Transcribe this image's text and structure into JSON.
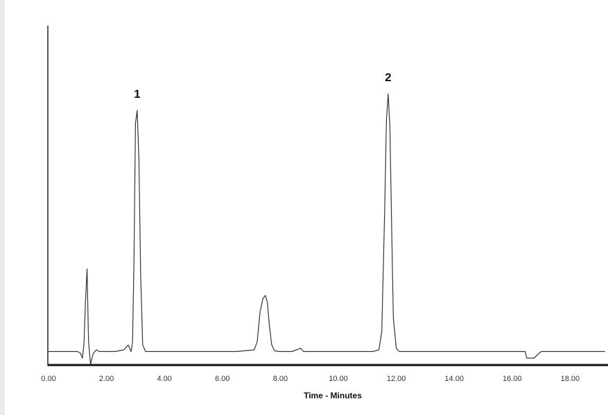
{
  "chart_data": {
    "type": "line",
    "title": "",
    "xlabel": "Time - Minutes",
    "ylabel": "",
    "xlim": [
      0.0,
      19.2
    ],
    "ylim": [
      -0.05,
      1.0
    ],
    "x_tick_labels": [
      "0.00",
      "2.00",
      "4.00",
      "6.00",
      "8.00",
      "10.00",
      "12.00",
      "14.00",
      "16.00",
      "18.00"
    ],
    "grid": false,
    "series": [
      {
        "x": [
          0.0,
          0.4,
          0.8,
          1.0,
          1.1,
          1.17,
          1.22,
          1.28,
          1.33,
          1.38,
          1.45,
          1.5,
          1.55,
          1.65,
          1.75,
          1.95,
          2.3,
          2.6,
          2.75,
          2.85,
          2.9,
          2.95,
          3.0,
          3.06,
          3.12,
          3.18,
          3.25,
          3.35,
          3.6,
          5.0,
          6.5,
          7.1,
          7.2,
          7.3,
          7.4,
          7.48,
          7.55,
          7.62,
          7.7,
          7.8,
          7.95,
          8.4,
          8.6,
          8.7,
          8.8,
          9.0,
          10.5,
          11.2,
          11.4,
          11.5,
          11.6,
          11.66,
          11.72,
          11.78,
          11.84,
          11.9,
          12.0,
          12.1,
          12.4,
          14.0,
          16.0,
          16.45,
          16.5,
          16.55,
          16.75,
          17.0,
          19.2
        ],
        "y": [
          0.02,
          0.02,
          0.02,
          0.02,
          0.015,
          0.0,
          0.04,
          0.18,
          0.27,
          0.05,
          -0.02,
          0.0,
          0.015,
          0.025,
          0.02,
          0.02,
          0.02,
          0.025,
          0.04,
          0.02,
          0.05,
          0.3,
          0.71,
          0.75,
          0.6,
          0.25,
          0.04,
          0.02,
          0.02,
          0.02,
          0.02,
          0.025,
          0.05,
          0.14,
          0.18,
          0.19,
          0.17,
          0.1,
          0.04,
          0.022,
          0.02,
          0.02,
          0.026,
          0.03,
          0.02,
          0.02,
          0.02,
          0.02,
          0.025,
          0.08,
          0.45,
          0.72,
          0.8,
          0.7,
          0.4,
          0.12,
          0.03,
          0.02,
          0.02,
          0.02,
          0.02,
          0.02,
          0.0,
          0.0,
          0.0,
          0.02,
          0.02
        ]
      }
    ],
    "annotations": [
      {
        "label": "1",
        "x": 3.06,
        "y": 0.75
      },
      {
        "label": "2",
        "x": 11.72,
        "y": 0.8
      }
    ],
    "colors": {
      "line": "#333333",
      "axis": "#222222",
      "baseline": "#111111"
    }
  }
}
